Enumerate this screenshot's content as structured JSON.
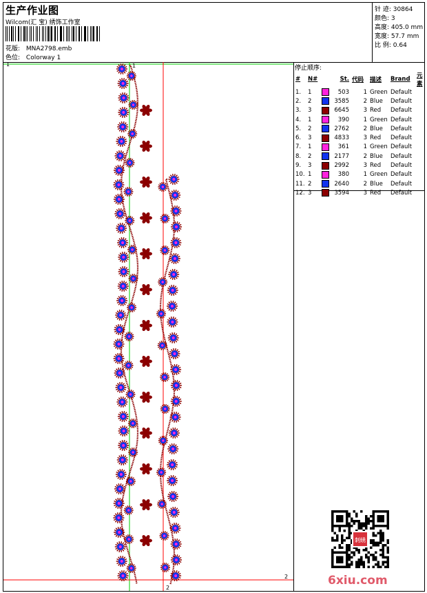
{
  "header": {
    "title": "生产作业图",
    "software": "Wilcom(汇 宝) 绣饰工作室",
    "pattern_label": "花版:",
    "pattern_value": "MNA2798.emb",
    "colorway_label": "色位:",
    "colorway_value": "Colorway 1"
  },
  "stats": [
    {
      "label": "针 迹:",
      "value": "30864"
    },
    {
      "label": "颜色:",
      "value": "3"
    },
    {
      "label": "高度:",
      "value": "405.0 mm"
    },
    {
      "label": "宽度:",
      "value": "57.7 mm"
    },
    {
      "label": "比 例:",
      "value": "0.64"
    }
  ],
  "stop_sequence": {
    "heading": "停止顺序:",
    "columns": [
      "#",
      "N#",
      "St.",
      "代码",
      "描述",
      "Brand",
      "元素"
    ],
    "rows": [
      {
        "n": "1.",
        "nn": "1",
        "color": "#ff22dd",
        "st": "503",
        "code": "1",
        "desc": "Green",
        "brand": "Default"
      },
      {
        "n": "2.",
        "nn": "2",
        "color": "#1133ee",
        "st": "3585",
        "code": "2",
        "desc": "Blue",
        "brand": "Default"
      },
      {
        "n": "3.",
        "nn": "3",
        "color": "#8b0000",
        "st": "6645",
        "code": "3",
        "desc": "Red",
        "brand": "Default"
      },
      {
        "n": "4.",
        "nn": "1",
        "color": "#ff22dd",
        "st": "390",
        "code": "1",
        "desc": "Green",
        "brand": "Default"
      },
      {
        "n": "5.",
        "nn": "2",
        "color": "#1133ee",
        "st": "2762",
        "code": "2",
        "desc": "Blue",
        "brand": "Default"
      },
      {
        "n": "6.",
        "nn": "3",
        "color": "#8b0000",
        "st": "4833",
        "code": "3",
        "desc": "Red",
        "brand": "Default"
      },
      {
        "n": "7.",
        "nn": "1",
        "color": "#ff22dd",
        "st": "361",
        "code": "1",
        "desc": "Green",
        "brand": "Default"
      },
      {
        "n": "8.",
        "nn": "2",
        "color": "#1133ee",
        "st": "2177",
        "code": "2",
        "desc": "Blue",
        "brand": "Default"
      },
      {
        "n": "9.",
        "nn": "3",
        "color": "#8b0000",
        "st": "2992",
        "code": "3",
        "desc": "Red",
        "brand": "Default"
      },
      {
        "n": "10.",
        "nn": "1",
        "color": "#ff22dd",
        "st": "380",
        "code": "1",
        "desc": "Green",
        "brand": "Default"
      },
      {
        "n": "11.",
        "nn": "2",
        "color": "#1133ee",
        "st": "2640",
        "code": "2",
        "desc": "Blue",
        "brand": "Default"
      },
      {
        "n": "12.",
        "nn": "3",
        "color": "#8b0000",
        "st": "3594",
        "code": "3",
        "desc": "Red",
        "brand": "Default"
      }
    ]
  },
  "canvas": {
    "guide_label_1": "1",
    "guide_label_2": "2",
    "thread_colors": {
      "flower_outer": "#8b0000",
      "flower_inner": "#1133ee",
      "flower_center": "#ff22dd"
    }
  },
  "watermark": "6xiu.com",
  "qr_stamp_text": "刺绣"
}
